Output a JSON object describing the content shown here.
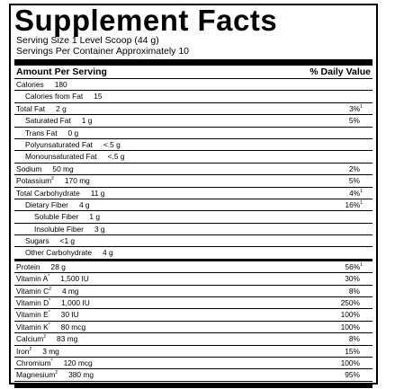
{
  "title": "Supplement Facts",
  "serving_size": "Serving Size 1 Level Scoop (44 g)",
  "servings_per_container": "Servings Per Container Approximately 10",
  "header": {
    "amount_label": "Amount Per Serving",
    "dv_label": "% Daily Value"
  },
  "rows": [
    {
      "name": "Calories",
      "sup": "",
      "amount": "180",
      "dv": "",
      "dv_sup": "",
      "indent": 0
    },
    {
      "name": "Calories from Fat",
      "sup": "",
      "amount": "15",
      "dv": "",
      "dv_sup": "",
      "indent": 1
    },
    {
      "name": "Total Fat",
      "sup": "",
      "amount": "2 g",
      "dv": "3%",
      "dv_sup": "1",
      "indent": 0
    },
    {
      "name": "Saturated Fat",
      "sup": "",
      "amount": "1 g",
      "dv": "5%",
      "dv_sup": "",
      "indent": 1
    },
    {
      "name": "Trans Fat",
      "sup": "",
      "amount": "0 g",
      "dv": "",
      "dv_sup": "",
      "indent": 1
    },
    {
      "name": "Polyunsaturated Fat",
      "sup": "",
      "amount": "<.5 g",
      "dv": "",
      "dv_sup": "",
      "indent": 1
    },
    {
      "name": "Monounsaturated Fat",
      "sup": "",
      "amount": "<.5 g",
      "dv": "",
      "dv_sup": "",
      "indent": 1
    },
    {
      "name": "Sodium",
      "sup": "",
      "amount": "50 mg",
      "dv": "2%",
      "dv_sup": "",
      "indent": 0
    },
    {
      "name": "Potassium",
      "sup": "2",
      "amount": "170 mg",
      "dv": "5%",
      "dv_sup": "",
      "indent": 0
    },
    {
      "name": "Total Carbohydrate",
      "sup": "",
      "amount": "11 g",
      "dv": "4%",
      "dv_sup": "1",
      "indent": 0
    },
    {
      "name": "Dietary Fiber",
      "sup": "",
      "amount": "4 g",
      "dv": "16%",
      "dv_sup": "1",
      "indent": 1
    },
    {
      "name": "Soluble Fiber",
      "sup": "",
      "amount": "1 g",
      "dv": "",
      "dv_sup": "",
      "indent": 2
    },
    {
      "name": "Insoluble Fiber",
      "sup": "",
      "amount": "3 g",
      "dv": "",
      "dv_sup": "",
      "indent": 2
    },
    {
      "name": "Sugars",
      "sup": "",
      "amount": "<1 g",
      "dv": "",
      "dv_sup": "",
      "indent": 1
    },
    {
      "name": "Other Carbohydrate",
      "sup": "",
      "amount": "4 g",
      "dv": "",
      "dv_sup": "",
      "indent": 1
    },
    {
      "name": "Protein",
      "sup": "",
      "amount": "28 g",
      "dv": "56%",
      "dv_sup": "1",
      "indent": 0
    },
    {
      "name": "Vitamin A",
      "sup": "*",
      "amount": "1,500 IU",
      "dv": "30%",
      "dv_sup": "",
      "indent": 0
    },
    {
      "name": "Vitamin C",
      "sup": "2",
      "amount": "4 mg",
      "dv": "8%",
      "dv_sup": "",
      "indent": 0
    },
    {
      "name": "Vitamin D",
      "sup": "*",
      "amount": "1,000 IU",
      "dv": "250%",
      "dv_sup": "",
      "indent": 0
    },
    {
      "name": "Vitamin E",
      "sup": "*",
      "amount": "30 IU",
      "dv": "100%",
      "dv_sup": "",
      "indent": 0
    },
    {
      "name": "Vitamin K",
      "sup": "*",
      "amount": "80 mcg",
      "dv": "100%",
      "dv_sup": "",
      "indent": 0
    },
    {
      "name": "Calcium",
      "sup": "2",
      "amount": "83 mg",
      "dv": "8%",
      "dv_sup": "",
      "indent": 0
    },
    {
      "name": "Iron",
      "sup": "2",
      "amount": "3 mg",
      "dv": "15%",
      "dv_sup": "",
      "indent": 0
    },
    {
      "name": "Chromium",
      "sup": "*",
      "amount": "120 mcg",
      "dv": "100%",
      "dv_sup": "",
      "indent": 0
    },
    {
      "name": "Magnesium",
      "sup": "2",
      "amount": "380 mg",
      "dv": "95%",
      "dv_sup": "",
      "indent": 0
    }
  ]
}
